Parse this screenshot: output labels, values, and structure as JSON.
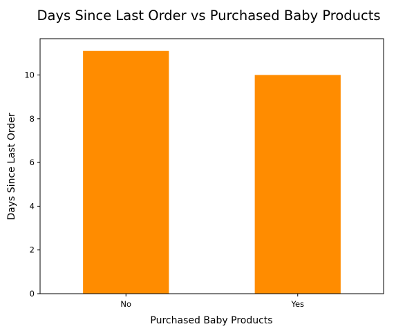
{
  "chart_data": {
    "type": "bar",
    "title": "Days Since Last Order vs Purchased Baby Products",
    "xlabel": "Purchased Baby Products",
    "ylabel": "Days Since Last Order",
    "categories": [
      "No",
      "Yes"
    ],
    "values": [
      11.1,
      10.0
    ],
    "ylim": [
      0,
      11.66
    ],
    "yticks": [
      0,
      2,
      4,
      6,
      8,
      10
    ],
    "bar_color": "#ff8c00",
    "grid": false,
    "legend": "none"
  }
}
